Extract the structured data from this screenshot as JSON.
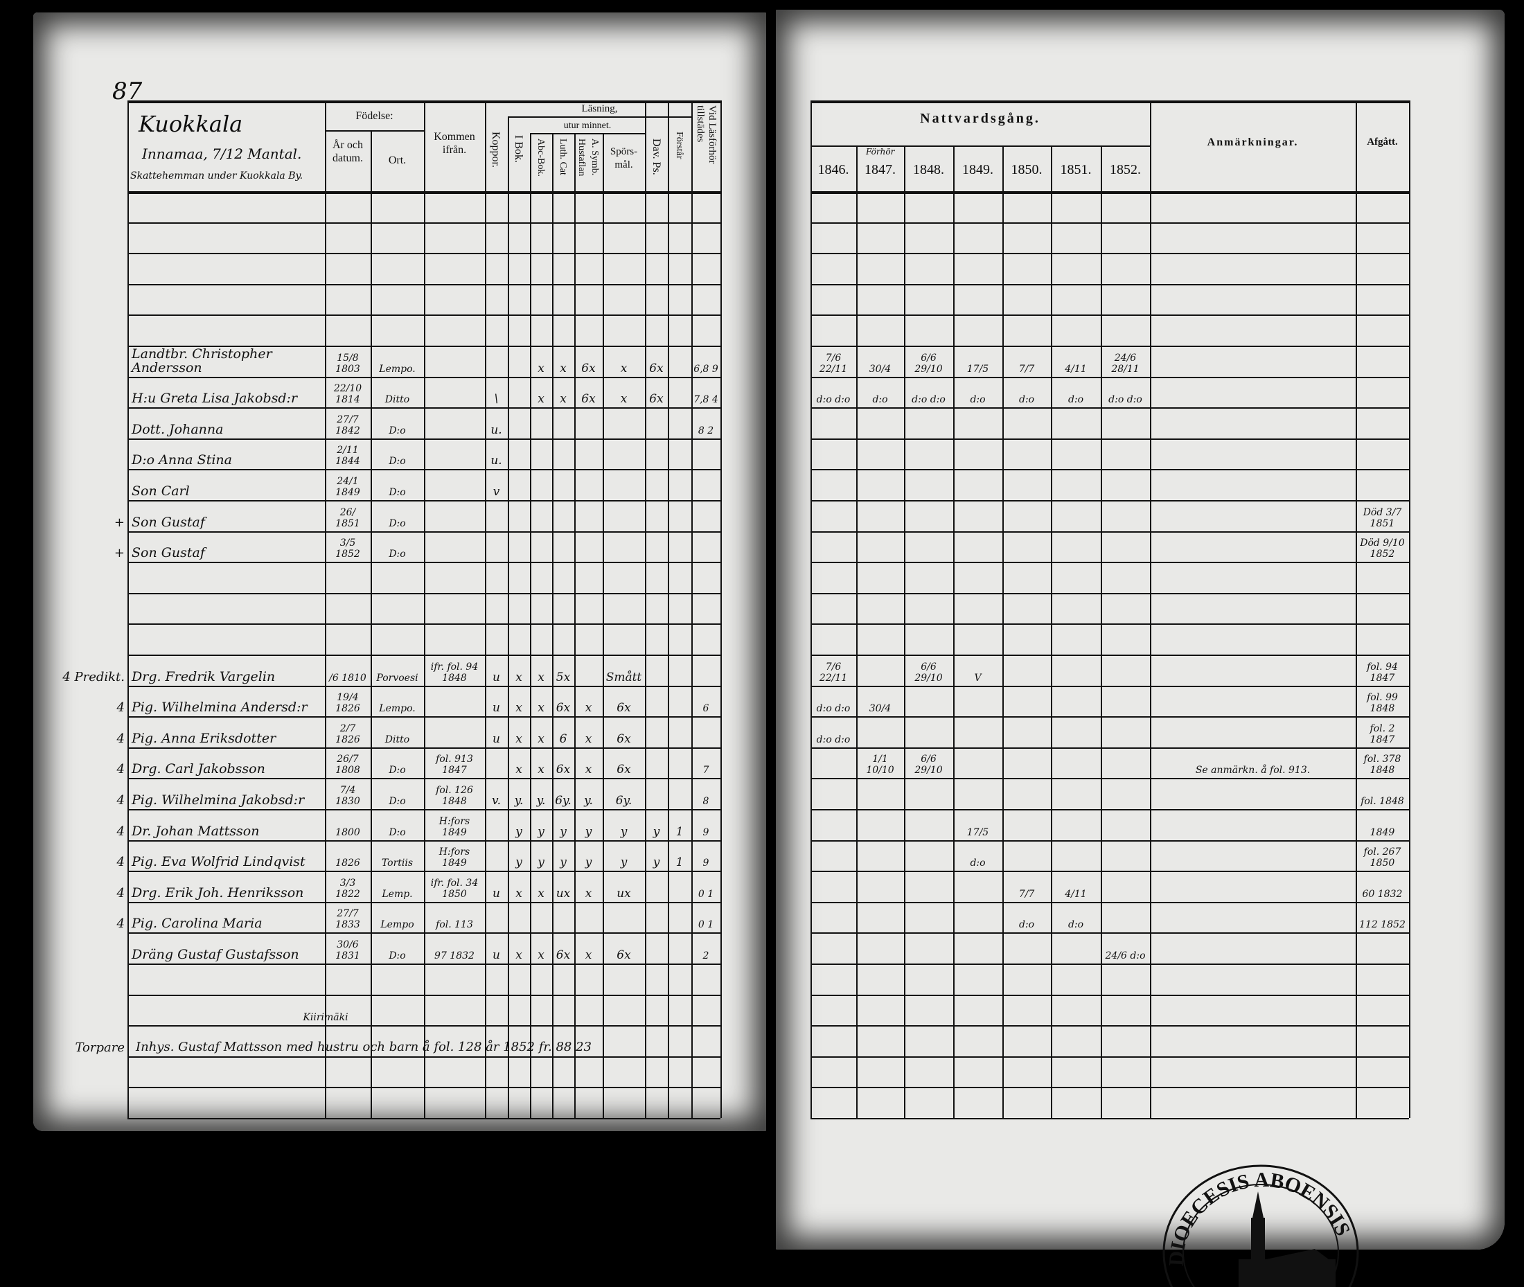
{
  "page_number": "87",
  "header": {
    "place_title": "Kuokkala",
    "farm": "Innamaa, 7/12 Mantal.",
    "farm_note": "Skattehemman under Kuokkala By.",
    "fodelse": "Födelse:",
    "ar_och_datum": "År och datum.",
    "ort": "Ort.",
    "kommen_ifran": "Kommen ifrån.",
    "koppor": "Koppor.",
    "lasning": "Läsning,",
    "i_bok": "I Bok.",
    "utur_minnet": "utur minnet.",
    "abc_bok": "Abc-Bok.",
    "luth_cat": "Luth. Cat",
    "a_symb": "A. Symb.",
    "hustaflan": "Hustaflan",
    "sporsmal": "Spörs-mål.",
    "dav_ps": "Dav. Ps.",
    "forstar": "Förstår",
    "vid_lasforhor": "Vid Läsförhör tillstädes",
    "nattvardsgang": "Nattvardsgång.",
    "forhor_note": "Förhör",
    "years": [
      "1846.",
      "1847.",
      "1848.",
      "1849.",
      "1850.",
      "1851.",
      "1852."
    ],
    "anmarkningar": "Anmärkningar.",
    "afgatt": "Afgått."
  },
  "rows": [
    {},
    {},
    {},
    {},
    {},
    {
      "name": "Landtbr. Christopher Andersson",
      "birth": "15/8 1803",
      "place": "Lempo.",
      "abc": "x",
      "luth": "x",
      "hust": "6x",
      "spors": "x",
      "dav": "6x",
      "vid": "6,8 9",
      "n": [
        "7/6 22/11",
        "30/4",
        "6/6 29/10",
        "17/5",
        "7/7",
        "4/11",
        "24/6 28/11"
      ]
    },
    {
      "name": "H:u Greta Lisa Jakobsd:r",
      "birth": "22/10 1814",
      "place": "Ditto",
      "koppor": "\\",
      "abc": "x",
      "luth": "x",
      "hust": "6x",
      "spors": "x",
      "dav": "6x",
      "vid": "7,8 4",
      "n": [
        "d:o d:o",
        "d:o",
        "d:o d:o",
        "d:o",
        "d:o",
        "d:o",
        "d:o d:o"
      ]
    },
    {
      "name": "Dott. Johanna",
      "birth": "27/7 1842",
      "place": "D:o",
      "koppor": "u.",
      "vid": "8 2"
    },
    {
      "name": "D:o Anna Stina",
      "birth": "2/11 1844",
      "place": "D:o",
      "koppor": "u."
    },
    {
      "name": "Son Carl",
      "birth": "24/1 1849",
      "place": "D:o",
      "koppor": "v"
    },
    {
      "prefix": "+",
      "name": "Son Gustaf",
      "birth": "26/ 1851",
      "place": "D:o",
      "afg": "Död 3/7 1851"
    },
    {
      "prefix": "+",
      "name": "Son Gustaf",
      "birth": "3/5 1852",
      "place": "D:o",
      "afg": "Död 9/10 1852"
    },
    {},
    {},
    {},
    {
      "prefix": "4 Predikt.",
      "name": "Drg. Fredrik Vargelin",
      "birth": "/6 1810",
      "place": "Porvoesi",
      "from": "ifr. fol. 94 1848",
      "koppor": "u",
      "i_bok": "x",
      "abc": "x",
      "luth": "5x",
      "spors": "Smått",
      "n": [
        "7/6 22/11",
        "",
        "6/6 29/10",
        "V",
        "",
        "",
        ""
      ],
      "afg": "fol. 94 1847"
    },
    {
      "prefix": "4",
      "name": "Pig. Wilhelmina Andersd:r",
      "birth": "19/4 1826",
      "place": "Lempo.",
      "koppor": "u",
      "i_bok": "x",
      "abc": "x",
      "luth": "6x",
      "hust": "x",
      "spors": "6x",
      "vid": "6",
      "n": [
        "d:o d:o",
        "30/4",
        "",
        "",
        "",
        "",
        ""
      ],
      "afg": "fol. 99 1848"
    },
    {
      "prefix": "4",
      "name": "Pig. Anna Eriksdotter",
      "birth": "2/7 1826",
      "place": "Ditto",
      "koppor": "u",
      "i_bok": "x",
      "abc": "x",
      "luth": "6",
      "hust": "x",
      "spors": "6x",
      "n": [
        "d:o d:o",
        "",
        "",
        "",
        "",
        "",
        ""
      ],
      "afg": "fol. 2 1847"
    },
    {
      "prefix": "4",
      "name": "Drg. Carl Jakobsson",
      "birth": "26/7 1808",
      "place": "D:o",
      "from": "fol. 913 1847",
      "i_bok": "x",
      "abc": "x",
      "luth": "6x",
      "hust": "x",
      "spors": "6x",
      "vid": "7",
      "n": [
        "",
        "1/1 10/10",
        "6/6 29/10",
        "",
        "",
        "",
        ""
      ],
      "anm": "Se anmärkn. å fol. 913.",
      "afg": "fol. 378 1848"
    },
    {
      "prefix": "4",
      "name": "Pig. Wilhelmina Jakobsd:r",
      "birth": "7/4 1830",
      "place": "D:o",
      "from": "fol. 126 1848",
      "koppor": "v.",
      "i_bok": "y.",
      "abc": "y.",
      "luth": "6y.",
      "hust": "y.",
      "spors": "6y.",
      "vid": "8",
      "afg": "fol. 1848"
    },
    {
      "prefix": "4",
      "name": "Dr. Johan Mattsson",
      "birth": "1800",
      "place": "D:o",
      "from": "H:fors 1849",
      "i_bok": "y",
      "abc": "y",
      "luth": "y",
      "hust": "y",
      "spors": "y",
      "dav": "y",
      "forstar": "1",
      "vid": "9",
      "n": [
        "",
        "",
        "",
        "17/5",
        "",
        "",
        ""
      ],
      "afg": "1849"
    },
    {
      "prefix": "4",
      "name": "Pig. Eva Wolfrid Lindqvist",
      "birth": "1826",
      "place": "Tortiis",
      "from": "H:fors 1849",
      "i_bok": "y",
      "abc": "y",
      "luth": "y",
      "hust": "y",
      "spors": "y",
      "dav": "y",
      "forstar": "1",
      "vid": "9",
      "n": [
        "",
        "",
        "",
        "d:o",
        "",
        "",
        ""
      ],
      "afg": "fol. 267 1850"
    },
    {
      "prefix": "4",
      "name": "Drg. Erik Joh. Henriksson",
      "birth": "3/3 1822",
      "place": "Lemp.",
      "from": "ifr. fol. 34 1850",
      "koppor": "u",
      "i_bok": "x",
      "abc": "x",
      "luth": "ux",
      "hust": "x",
      "spors": "ux",
      "vid": "0 1",
      "n": [
        "",
        "",
        "",
        "",
        "7/7",
        "4/11",
        ""
      ],
      "afg": "60 1832"
    },
    {
      "prefix": "4",
      "name": "Pig. Carolina Maria",
      "birth": "27/7 1833",
      "place": "Lempo",
      "from": "fol. 113",
      "vid": "0 1",
      "n": [
        "",
        "",
        "",
        "",
        "d:o",
        "d:o",
        ""
      ],
      "afg": "112 1852"
    },
    {
      "name": "Dräng Gustaf Gustafsson",
      "birth": "30/6 1831",
      "place": "D:o",
      "from": "97 1832",
      "koppor": "u",
      "i_bok": "x",
      "abc": "x",
      "luth": "6x",
      "hust": "x",
      "spors": "6x",
      "vid": "2",
      "n": [
        "",
        "",
        "",
        "",
        "",
        "",
        "24/6 d:o"
      ]
    },
    {},
    {},
    {
      "prefix": "Torpare",
      "note_above": "Kiirimäki",
      "note": "Inhys. Gustaf Mattsson med hustru och barn å fol. 128 år 1852 fr. 88 23"
    },
    {},
    {}
  ],
  "stamp": {
    "text": "DIOECESIS ABOENSIS"
  }
}
